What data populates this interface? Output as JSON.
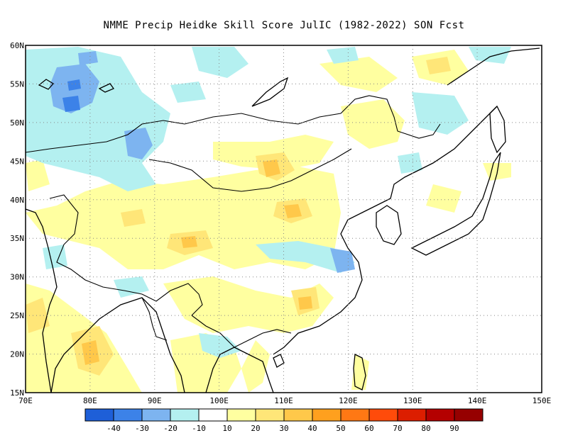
{
  "title": "NMME Precip Heidke Skill Score JulIC (1982-2022) SON Fcst",
  "map": {
    "lon_range": [
      70,
      150
    ],
    "lat_range": [
      15,
      60
    ],
    "lon_ticks": [
      "70E",
      "80E",
      "90E",
      "100E",
      "110E",
      "120E",
      "130E",
      "140E",
      "150E"
    ],
    "lat_ticks": [
      "15N",
      "20N",
      "25N",
      "30N",
      "35N",
      "40N",
      "45N",
      "50N",
      "55N",
      "60N"
    ],
    "grid": "dotted"
  },
  "colorbar": {
    "colors": [
      "#1e5fd8",
      "#3c82e8",
      "#7db4f0",
      "#b4f0f0",
      "#ffffff",
      "#ffffa0",
      "#ffe678",
      "#ffc84a",
      "#ffa01e",
      "#ff7814",
      "#ff4b0a",
      "#dc1e00",
      "#b40000",
      "#960000"
    ],
    "labels": [
      "-40",
      "-30",
      "-20",
      "-10",
      "10",
      "20",
      "30",
      "40",
      "50",
      "60",
      "70",
      "80",
      "90"
    ]
  }
}
